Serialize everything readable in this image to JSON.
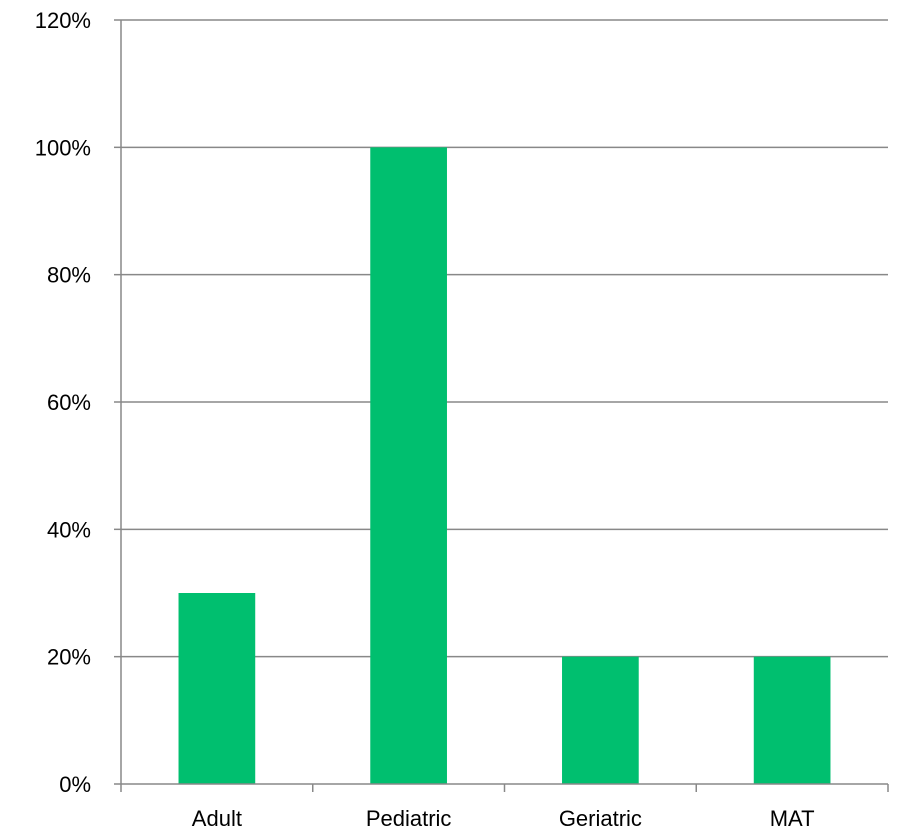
{
  "chart_data": {
    "type": "bar",
    "categories": [
      "Adult",
      "Pediatric",
      "Geriatric",
      "MAT"
    ],
    "values": [
      0.3,
      1.0,
      0.2,
      0.2
    ],
    "value_format": "percent",
    "ylim": [
      0,
      1.2
    ],
    "yticks": [
      0,
      0.2,
      0.4,
      0.6,
      0.8,
      1.0,
      1.2
    ],
    "ytick_labels": [
      "0%",
      "20%",
      "40%",
      "60%",
      "80%",
      "100%",
      "120%"
    ],
    "title": "",
    "xlabel": "",
    "ylabel": "",
    "grid": true,
    "legend": "none",
    "colors": {
      "bar": "#00BF6F",
      "grid": "#888888",
      "axis": "#888888"
    }
  }
}
